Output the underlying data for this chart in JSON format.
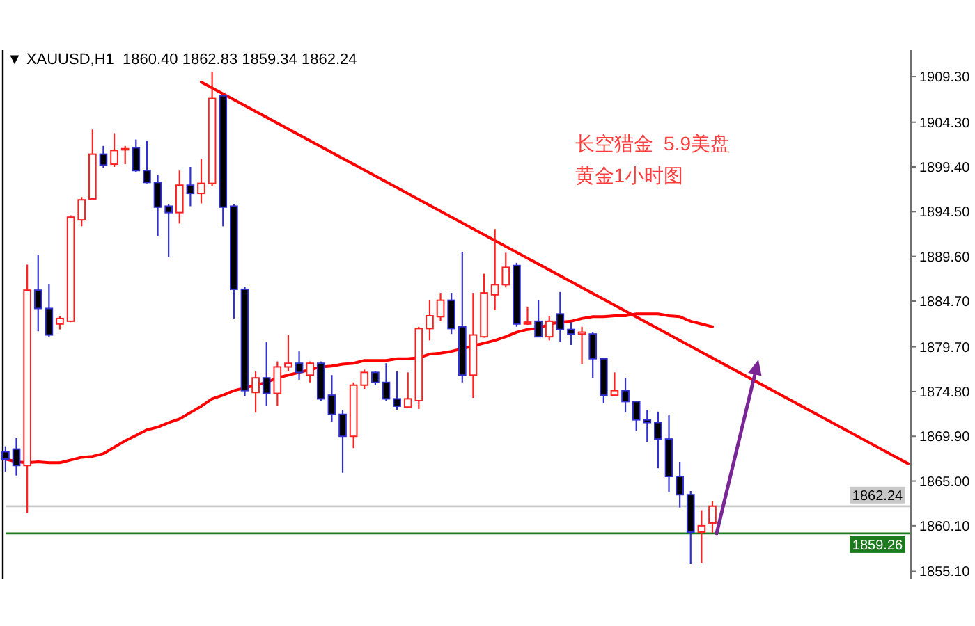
{
  "chart_data": {
    "type": "candlestick",
    "title": "▼ XAUUSD,H1  1860.40 1862.83 1859.34 1862.24",
    "annotations": [
      "长空猎金  5.9美盘",
      "黄金1小时图"
    ],
    "categories": [
      null,
      null,
      null,
      null,
      null,
      null,
      null,
      null,
      null,
      null,
      null,
      null,
      null,
      null,
      null,
      null,
      null,
      null,
      null,
      null,
      null,
      null,
      null,
      null,
      null,
      null,
      null,
      null,
      null,
      null,
      null,
      null,
      null,
      null,
      null,
      null,
      null,
      null,
      null,
      null,
      null,
      null,
      null,
      null,
      null,
      null,
      null,
      null,
      null,
      null,
      null,
      null,
      null,
      null,
      null,
      null,
      null,
      null,
      null,
      null,
      null,
      null,
      null,
      null,
      null,
      null,
      null,
      null,
      null,
      null,
      null,
      null,
      null,
      null,
      null,
      null,
      null,
      null,
      null,
      null,
      null,
      null,
      null,
      null
    ],
    "ohlc": [
      [
        1868.2,
        1868.8,
        1866.0,
        1867.4
      ],
      [
        1868.5,
        1869.7,
        1865.6,
        1866.7
      ],
      [
        1866.7,
        1888.7,
        1861.5,
        1885.9
      ],
      [
        1885.9,
        1889.8,
        1881.4,
        1883.9
      ],
      [
        1883.9,
        1886.6,
        1880.8,
        1881.0
      ],
      [
        1882.2,
        1883.1,
        1881.6,
        1882.8
      ],
      [
        1882.5,
        1894.1,
        1882.4,
        1893.9
      ],
      [
        1893.6,
        1896.1,
        1892.9,
        1895.8
      ],
      [
        1895.9,
        1903.5,
        1895.9,
        1900.8
      ],
      [
        1900.8,
        1901.7,
        1899.3,
        1899.6
      ],
      [
        1899.7,
        1903.1,
        1899.4,
        1901.2
      ],
      [
        1901.3,
        1901.7,
        1899.7,
        1901.4
      ],
      [
        1901.5,
        1902.4,
        1898.8,
        1899.0
      ],
      [
        1899.0,
        1902.3,
        1897.6,
        1897.7
      ],
      [
        1897.7,
        1898.5,
        1891.8,
        1895.0
      ],
      [
        1895.1,
        1895.3,
        1889.5,
        1894.4
      ],
      [
        1894.4,
        1899.0,
        1893.2,
        1897.4
      ],
      [
        1897.4,
        1899.4,
        1895.1,
        1896.5
      ],
      [
        1896.5,
        1900.3,
        1895.4,
        1897.6
      ],
      [
        1897.6,
        1909.8,
        1897.3,
        1906.9
      ],
      [
        1907.2,
        1907.3,
        1892.9,
        1895.0
      ],
      [
        1895.1,
        1895.3,
        1882.8,
        1886.0
      ],
      [
        1886.0,
        1886.3,
        1874.3,
        1874.9
      ],
      [
        1874.7,
        1877.0,
        1872.5,
        1876.3
      ],
      [
        1876.3,
        1880.2,
        1873.2,
        1874.6
      ],
      [
        1874.6,
        1878.1,
        1873.2,
        1877.5
      ],
      [
        1877.5,
        1881.0,
        1877.0,
        1877.9
      ],
      [
        1877.9,
        1879.2,
        1876.1,
        1876.9
      ],
      [
        1876.6,
        1878.1,
        1875.8,
        1877.9
      ],
      [
        1877.9,
        1878.1,
        1873.8,
        1874.0
      ],
      [
        1874.4,
        1876.6,
        1871.5,
        1872.3
      ],
      [
        1872.3,
        1872.8,
        1865.9,
        1869.9
      ],
      [
        1869.9,
        1875.8,
        1868.6,
        1875.5
      ],
      [
        1875.5,
        1877.2,
        1875.1,
        1876.9
      ],
      [
        1876.9,
        1877.0,
        1875.5,
        1875.8
      ],
      [
        1875.8,
        1877.9,
        1873.8,
        1874.0
      ],
      [
        1874.0,
        1877.0,
        1872.8,
        1873.2
      ],
      [
        1873.1,
        1876.9,
        1873.1,
        1874.0
      ],
      [
        1873.8,
        1881.9,
        1872.9,
        1881.7
      ],
      [
        1881.7,
        1884.8,
        1880.4,
        1883.1
      ],
      [
        1883.0,
        1885.6,
        1882.5,
        1884.8
      ],
      [
        1884.8,
        1885.6,
        1881.1,
        1881.7
      ],
      [
        1881.9,
        1890.1,
        1875.8,
        1876.6
      ],
      [
        1876.6,
        1885.6,
        1874.1,
        1881.0
      ],
      [
        1880.8,
        1887.7,
        1880.7,
        1885.6
      ],
      [
        1885.4,
        1892.6,
        1883.7,
        1886.5
      ],
      [
        1886.5,
        1890.0,
        1886.2,
        1888.4
      ],
      [
        1888.6,
        1888.9,
        1881.9,
        1882.2
      ],
      [
        1882.2,
        1884.1,
        1882.1,
        1882.4
      ],
      [
        1882.5,
        1884.8,
        1880.8,
        1880.8
      ],
      [
        1880.8,
        1883.1,
        1880.4,
        1882.5
      ],
      [
        1883.3,
        1885.7,
        1880.2,
        1881.6
      ],
      [
        1881.6,
        1882.4,
        1879.9,
        1881.1
      ],
      [
        1881.1,
        1881.9,
        1877.8,
        1881.3
      ],
      [
        1881.1,
        1881.3,
        1876.3,
        1878.4
      ],
      [
        1878.4,
        1878.5,
        1873.5,
        1874.4
      ],
      [
        1874.4,
        1876.9,
        1874.3,
        1874.9
      ],
      [
        1874.9,
        1876.3,
        1872.5,
        1873.7
      ],
      [
        1873.7,
        1873.8,
        1870.5,
        1871.7
      ],
      [
        1871.7,
        1872.8,
        1869.3,
        1871.4
      ],
      [
        1871.4,
        1872.6,
        1866.4,
        1869.6
      ],
      [
        1869.6,
        1872.2,
        1863.8,
        1865.5
      ],
      [
        1865.5,
        1867.1,
        1862.1,
        1863.5
      ],
      [
        1863.5,
        1863.9,
        1855.9,
        1859.4
      ],
      [
        1859.4,
        1861.8,
        1856.0,
        1860.1
      ],
      [
        1860.4,
        1862.83,
        1859.34,
        1862.24
      ],
      null,
      null,
      null,
      null,
      null,
      null,
      null,
      null,
      null,
      null,
      null,
      null,
      null,
      null,
      null,
      null,
      null,
      null
    ],
    "colors": [
      "#3030d0",
      "#3030d0",
      "#ff2020",
      "#3030d0",
      "#3030d0",
      "#ff2020",
      "#ff2020",
      "#ff2020",
      "#ff2020",
      "#3030d0",
      "#ff2020",
      "#ff2020",
      "#3030d0",
      "#3030d0",
      "#3030d0",
      "#3030d0",
      "#ff2020",
      "#3030d0",
      "#ff2020",
      "#ff2020",
      "#3030d0",
      "#3030d0",
      "#3030d0",
      "#ff2020",
      "#3030d0",
      "#ff2020",
      "#ff2020",
      "#3030d0",
      "#ff2020",
      "#3030d0",
      "#3030d0",
      "#3030d0",
      "#ff2020",
      "#ff2020",
      "#3030d0",
      "#3030d0",
      "#3030d0",
      "#ff2020",
      "#ff2020",
      "#ff2020",
      "#ff2020",
      "#3030d0",
      "#3030d0",
      "#ff2020",
      "#ff2020",
      "#ff2020",
      "#ff2020",
      "#3030d0",
      "#ff2020",
      "#3030d0",
      "#ff2020",
      "#3030d0",
      "#3030d0",
      "#ff2020",
      "#3030d0",
      "#3030d0",
      "#ff2020",
      "#3030d0",
      "#3030d0",
      "#3030d0",
      "#3030d0",
      "#3030d0",
      "#3030d0",
      "#3030d0",
      "#ff2020",
      "#ff2020",
      null,
      null,
      null,
      null,
      null,
      null,
      null,
      null,
      null,
      null,
      null,
      null,
      null,
      null,
      null,
      null,
      null,
      null
    ],
    "series": [
      {
        "type": "line",
        "color": "#ff0000",
        "values": [
          1867.4,
          1867.1,
          1867.0,
          1867.1,
          1867.0,
          1867.0,
          1867.3,
          1867.6,
          1867.7,
          1868.0,
          1868.7,
          1869.4,
          1870.0,
          1870.6,
          1870.9,
          1871.4,
          1871.8,
          1872.5,
          1873.2,
          1874.0,
          1874.4,
          1874.9,
          1875.2,
          1875.5,
          1875.8,
          1876.3,
          1876.6,
          1876.9,
          1877.2,
          1877.5,
          1877.6,
          1877.8,
          1877.9,
          1878.2,
          1878.2,
          1878.2,
          1878.4,
          1878.4,
          1878.5,
          1878.9,
          1879.0,
          1879.2,
          1879.5,
          1879.8,
          1880.1,
          1880.4,
          1880.8,
          1881.3,
          1881.6,
          1881.7,
          1882.2,
          1882.4,
          1882.5,
          1882.8,
          1883.0,
          1883.0,
          1883.1,
          1883.1,
          1883.3,
          1883.3,
          1883.3,
          1883.1,
          1883.0,
          1882.5,
          1882.2,
          1881.9,
          null,
          null,
          null,
          null,
          null,
          null,
          null,
          null,
          null,
          null,
          null,
          null,
          null,
          null,
          null,
          null,
          null,
          null
        ]
      },
      {
        "type": "line",
        "color": "#ff0000",
        "values": [
          null,
          null,
          null,
          null,
          null,
          null,
          null,
          null,
          null,
          null,
          null,
          null,
          null,
          null,
          null,
          null,
          null,
          null,
          1908.7,
          null,
          null,
          null,
          null,
          null,
          null,
          null,
          null,
          null,
          null,
          null,
          null,
          null,
          null,
          null,
          null,
          null,
          null,
          null,
          null,
          null,
          null,
          null,
          null,
          null,
          null,
          null,
          null,
          null,
          null,
          null,
          null,
          null,
          null,
          null,
          null,
          null,
          null,
          null,
          null,
          null,
          null,
          null,
          null,
          null,
          null,
          null,
          null,
          null,
          null,
          null,
          null,
          null,
          null,
          null,
          null,
          null,
          null,
          null,
          null,
          null,
          null,
          null,
          null,
          1866.9
        ]
      }
    ],
    "ylim": [
      1854.3,
      1912.2
    ],
    "yticks": [
      {
        "value": 1909.3,
        "label": "1909.30"
      },
      {
        "value": 1904.3,
        "label": "1904.30"
      },
      {
        "value": 1899.4,
        "label": "1899.40"
      },
      {
        "value": 1894.5,
        "label": "1894.50"
      },
      {
        "value": 1889.6,
        "label": "1889.60"
      },
      {
        "value": 1884.7,
        "label": "1884.70"
      },
      {
        "value": 1879.7,
        "label": "1879.70"
      },
      {
        "value": 1874.8,
        "label": "1874.80"
      },
      {
        "value": 1869.9,
        "label": "1869.90"
      },
      {
        "value": 1865.0,
        "label": "1865.00"
      },
      {
        "value": 1860.1,
        "label": "1860.10"
      },
      {
        "value": 1855.1,
        "label": "1855.10"
      }
    ],
    "ref_lines": [
      {
        "axis": "y",
        "value": 1862.24,
        "label": "1862.24",
        "color": "#c8c8c8"
      },
      {
        "axis": "y",
        "value": 1859.26,
        "label": "1859.26",
        "color": "#1e7a1e"
      }
    ],
    "tick_labels": "y"
  }
}
